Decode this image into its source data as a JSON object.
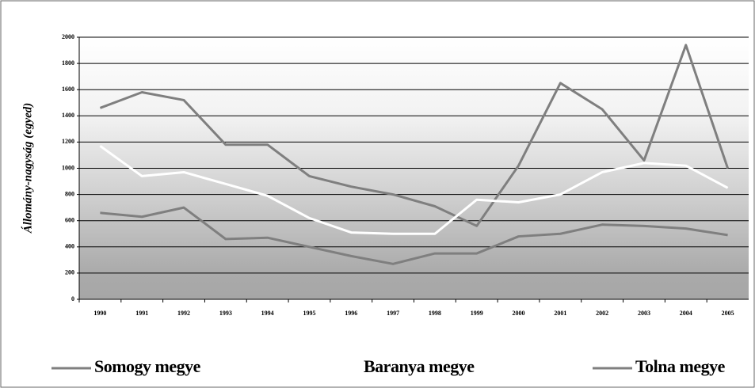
{
  "chart_data": {
    "type": "line",
    "y_label": "Állomány-nagyság (egyed)",
    "categories": [
      "1990",
      "1991",
      "1992",
      "1993",
      "1994",
      "1995",
      "1996",
      "1997",
      "1998",
      "1999",
      "2000",
      "2001",
      "2002",
      "2003",
      "2004",
      "2005"
    ],
    "series": [
      {
        "name": "Somogy megye",
        "color": "#7f7f7f",
        "values": [
          1460,
          1580,
          1520,
          1180,
          1180,
          940,
          860,
          800,
          710,
          560,
          1020,
          1650,
          1450,
          1060,
          1940,
          1000
        ]
      },
      {
        "name": "Baranya megye",
        "color": "#ffffff",
        "values": [
          1170,
          940,
          970,
          880,
          790,
          620,
          510,
          500,
          500,
          760,
          740,
          800,
          970,
          1040,
          1020,
          850
        ]
      },
      {
        "name": "Tolna megye",
        "color": "#7f7f7f",
        "values": [
          660,
          630,
          700,
          460,
          470,
          400,
          330,
          270,
          350,
          350,
          480,
          500,
          570,
          560,
          540,
          490
        ]
      }
    ],
    "ylim": [
      0,
      2000
    ],
    "yticks": [
      0,
      200,
      400,
      600,
      800,
      1000,
      1200,
      1400,
      1600,
      1800,
      2000
    ],
    "grid": true,
    "legend": "bottom"
  }
}
